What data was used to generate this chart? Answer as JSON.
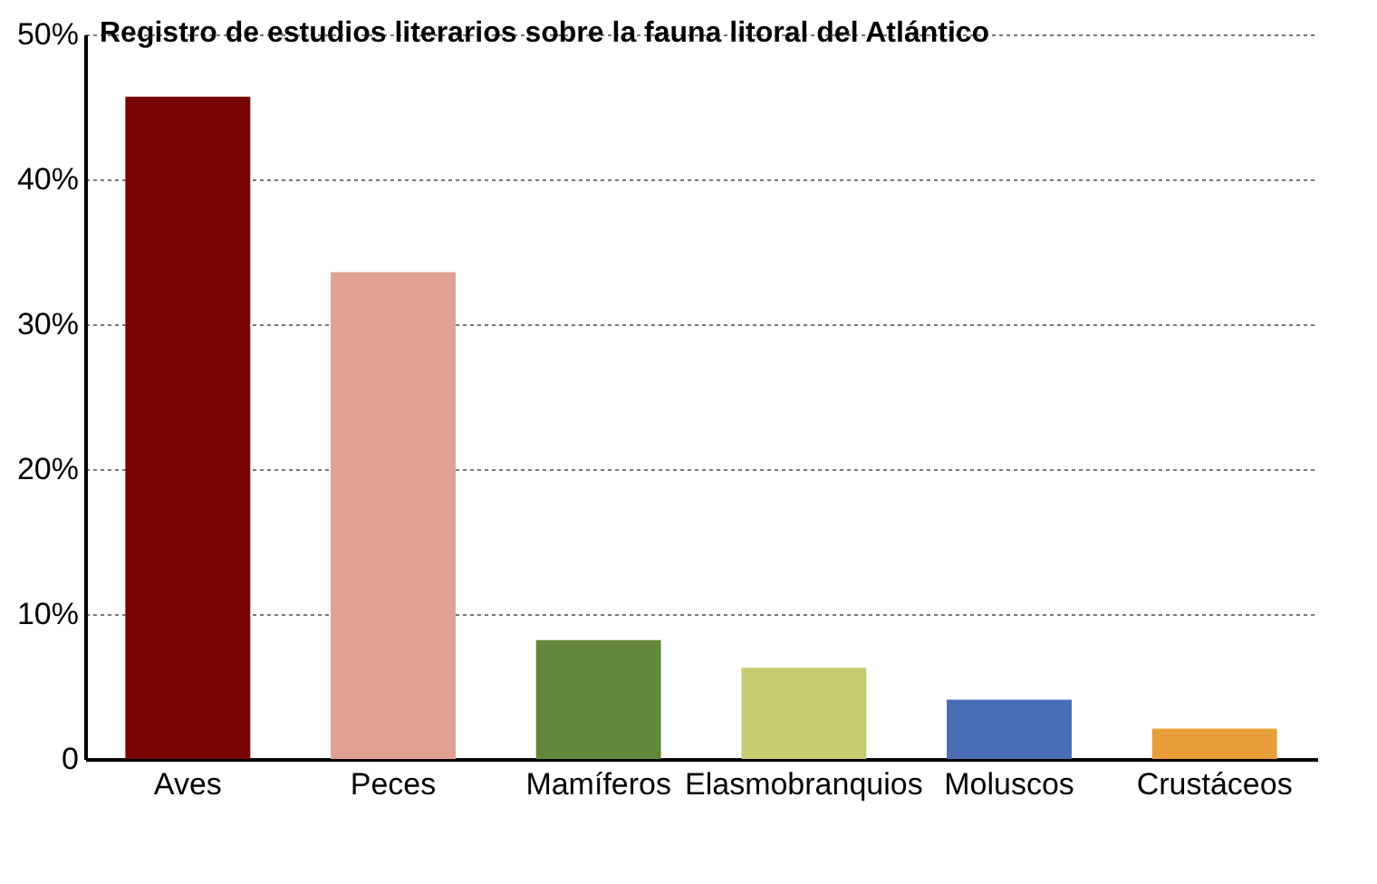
{
  "chart_data": {
    "type": "bar",
    "title": "Registro de estudios literarios sobre la fauna litoral del Atlántico",
    "categories": [
      "Aves",
      "Peces",
      "Mamíferos",
      "Elasmobranquios",
      "Moluscos",
      "Crustáceos"
    ],
    "values": [
      45.7,
      33.6,
      8.2,
      6.3,
      4.1,
      2.1
    ],
    "colors": [
      "#780404",
      "#e0a192",
      "#62873a",
      "#c8cb72",
      "#4a6cb4",
      "#e89e3a"
    ],
    "ylim": [
      0,
      50
    ],
    "yticks": [
      {
        "value": 0,
        "label": "0"
      },
      {
        "value": 10,
        "label": "10%"
      },
      {
        "value": 20,
        "label": "20%"
      },
      {
        "value": 30,
        "label": "30%"
      },
      {
        "value": 40,
        "label": "40%"
      },
      {
        "value": 50,
        "label": "50%"
      }
    ],
    "grid": "y"
  }
}
